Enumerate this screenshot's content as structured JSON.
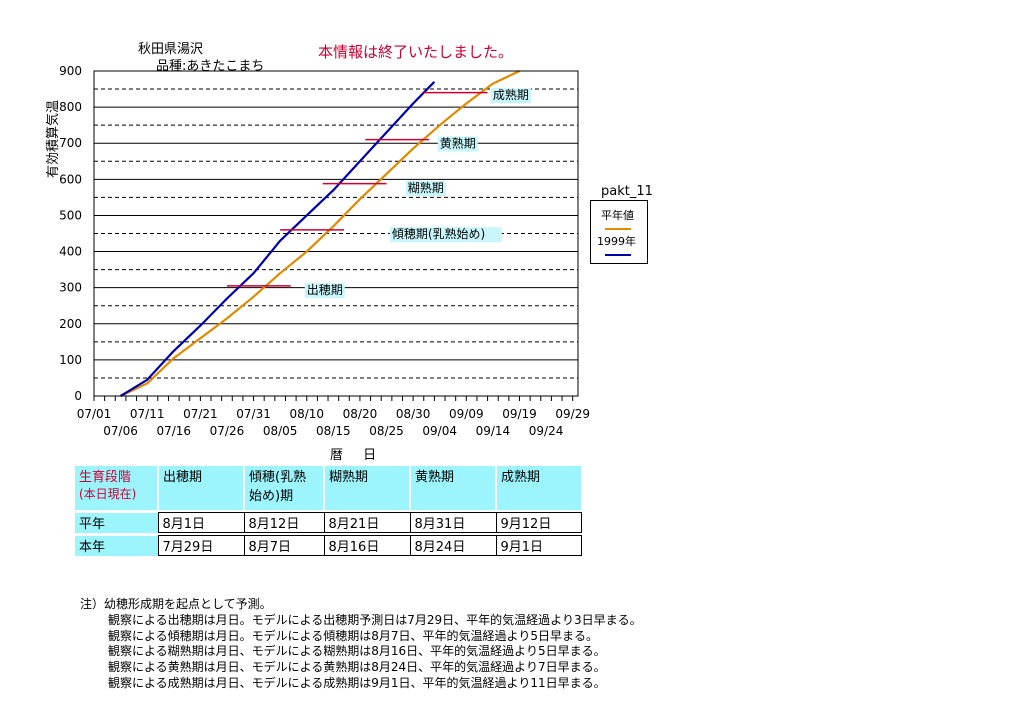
{
  "header": {
    "location": "秋田県湯沢",
    "variety": "品種:あきたこまち",
    "notice": "本情報は終了いたしました。"
  },
  "legend": {
    "title": "pakt_11",
    "entries": [
      "平年値",
      "1999年"
    ]
  },
  "chart_data": {
    "type": "line",
    "ylabel": "有効積算気温",
    "xlabel": "暦 日",
    "ylim": [
      0,
      900
    ],
    "yticks": [
      0,
      100,
      200,
      300,
      400,
      500,
      600,
      700,
      800,
      900
    ],
    "x_start": "07/01",
    "x_end": "09/30",
    "xticks_top": [
      "07/01",
      "07/11",
      "07/21",
      "07/31",
      "08/10",
      "08/20",
      "08/30",
      "09/09",
      "09/19",
      "09/29"
    ],
    "xticks_bottom": [
      "07/06",
      "07/16",
      "07/26",
      "08/05",
      "08/15",
      "08/25",
      "09/04",
      "09/14",
      "09/24"
    ],
    "grid": true,
    "series": [
      {
        "name": "平年値",
        "color": "#e08a00",
        "points": [
          [
            "07/06",
            0
          ],
          [
            "07/11",
            35
          ],
          [
            "07/16",
            105
          ],
          [
            "07/21",
            160
          ],
          [
            "07/26",
            215
          ],
          [
            "07/31",
            275
          ],
          [
            "08/05",
            340
          ],
          [
            "08/10",
            400
          ],
          [
            "08/15",
            470
          ],
          [
            "08/20",
            545
          ],
          [
            "08/25",
            615
          ],
          [
            "08/30",
            685
          ],
          [
            "09/04",
            750
          ],
          [
            "09/09",
            810
          ],
          [
            "09/14",
            865
          ],
          [
            "09/19",
            900
          ]
        ]
      },
      {
        "name": "1999年",
        "color": "#0000aa",
        "points": [
          [
            "07/06",
            0
          ],
          [
            "07/11",
            45
          ],
          [
            "07/16",
            125
          ],
          [
            "07/21",
            195
          ],
          [
            "07/26",
            270
          ],
          [
            "07/31",
            340
          ],
          [
            "08/05",
            430
          ],
          [
            "08/10",
            500
          ],
          [
            "08/15",
            570
          ],
          [
            "08/20",
            650
          ],
          [
            "08/25",
            730
          ],
          [
            "08/30",
            810
          ],
          [
            "09/03",
            870
          ]
        ]
      }
    ],
    "stage_markers": [
      {
        "label": "出穂期",
        "y": 305,
        "x_from": "07/26",
        "x_to": "08/07",
        "label_x": "08/10",
        "label_y": 282
      },
      {
        "label": "傾穂期(乳熟始め)",
        "y": 460,
        "x_from": "08/05",
        "x_to": "08/17",
        "label_x": "08/26",
        "label_y": 437
      },
      {
        "label": "糊熟期",
        "y": 588,
        "x_from": "08/13",
        "x_to": "08/25",
        "label_x": "08/29",
        "label_y": 565
      },
      {
        "label": "黄熟期",
        "y": 710,
        "x_from": "08/21",
        "x_to": "09/02",
        "label_x": "09/04",
        "label_y": 688
      },
      {
        "label": "成熟期",
        "y": 840,
        "x_from": "09/01",
        "x_to": "09/13",
        "label_x": "09/14",
        "label_y": 822
      }
    ]
  },
  "stage_table": {
    "header_label": "生育段階",
    "header_sublabel": "(本日現在)",
    "stages": [
      "出穂期",
      "傾穂(乳熟始め)期",
      "糊熟期",
      "黄熟期",
      "成熟期"
    ],
    "rows": [
      {
        "label": "平年",
        "values": [
          "8月1日",
          "8月12日",
          "8月21日",
          "8月31日",
          "9月12日"
        ]
      },
      {
        "label": "本年",
        "values": [
          "7月29日",
          "8月7日",
          "8月16日",
          "8月24日",
          "9月1日"
        ]
      }
    ]
  },
  "notes": {
    "title": "注）幼穂形成期を起点として予測。",
    "lines": [
      "観察による出穂期は月日。モデルによる出穂期予測日は7月29日、平年的気温経過より3日早まる。",
      "観察による傾穂期は月日。モデルによる傾穂期は8月7日、平年的気温経過より5日早まる。",
      "観察による糊熟期は月日、モデルによる糊熟期は8月16日、平年的気温経過より5日早まる。",
      "観察による黄熟期は月日、モデルによる黄熟期は8月24日、平年的気温経過より7日早まる。",
      "観察による成熟期は月日、モデルによる成熟期は9月1日、平年的気温経過より11日早まる。"
    ]
  }
}
